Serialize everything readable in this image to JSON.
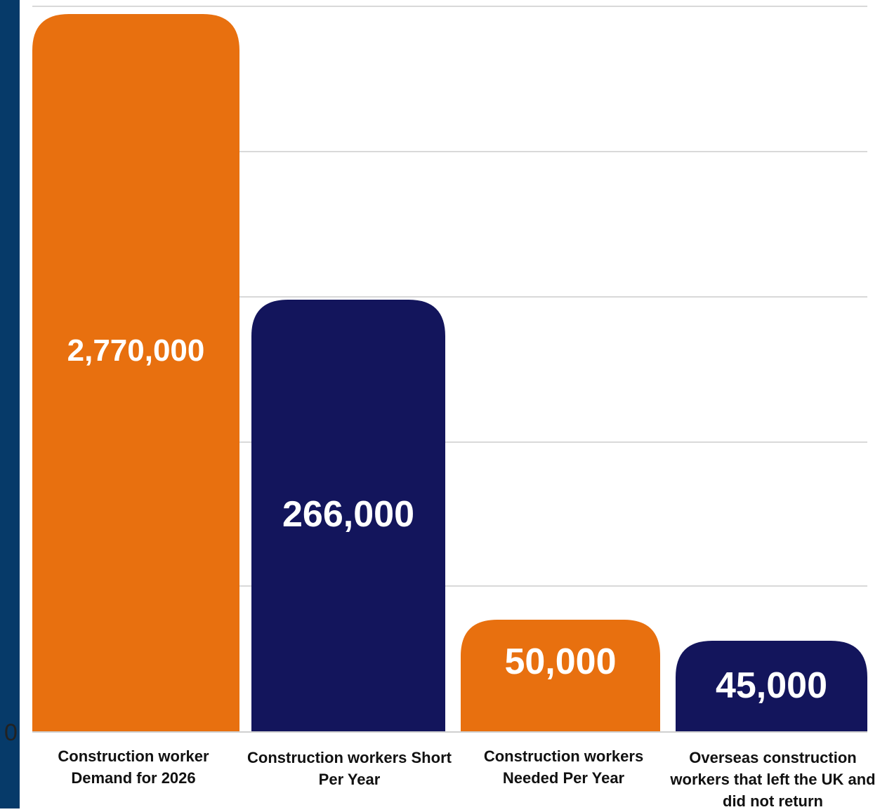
{
  "chart_data": {
    "type": "bar",
    "categories": [
      "Construction worker Demand for 2026",
      "Construction workers Short Per Year",
      "Construction workers Needed Per Year",
      "Overseas construction workers that left the UK and did not return"
    ],
    "values": [
      2770000,
      266000,
      50000,
      45000
    ],
    "value_labels": [
      "2,770,000",
      "266,000",
      "50,000",
      "45,000"
    ],
    "bar_colors": [
      "#e8700f",
      "#13155c",
      "#e8700f",
      "#13155c"
    ],
    "axis_zero_label": "0",
    "grid": true,
    "title": "",
    "xlabel": "",
    "ylabel": ""
  }
}
